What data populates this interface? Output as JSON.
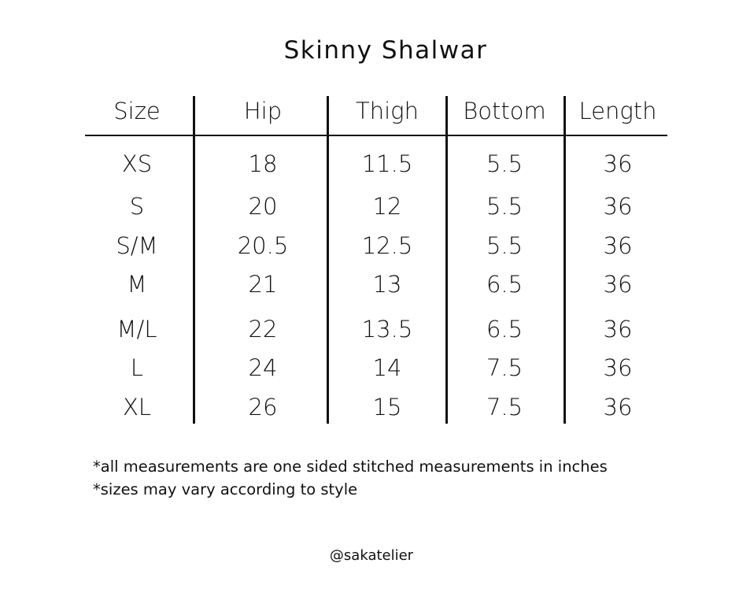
{
  "title": "Skinny Shalwar",
  "table": {
    "headers": [
      "Size",
      "Hip",
      "Thigh",
      "Bottom",
      "Length"
    ],
    "rows": [
      [
        "XS",
        "18",
        "11.5",
        "5.5",
        "36"
      ],
      [
        "S",
        "20",
        "12",
        "5.5",
        "36"
      ],
      [
        "S/M",
        "20.5",
        "12.5",
        "5.5",
        "36"
      ],
      [
        "M",
        "21",
        "13",
        "6.5",
        "36"
      ],
      [
        "M/L",
        "22",
        "13.5",
        "6.5",
        "36"
      ],
      [
        "L",
        "24",
        "14",
        "7.5",
        "36"
      ],
      [
        "XL",
        "26",
        "15",
        "7.5",
        "36"
      ]
    ]
  },
  "notes": [
    "*all measurements are one sided stitched measurements in inches",
    "*sizes may vary according to style"
  ],
  "handle": "@sakatelier"
}
